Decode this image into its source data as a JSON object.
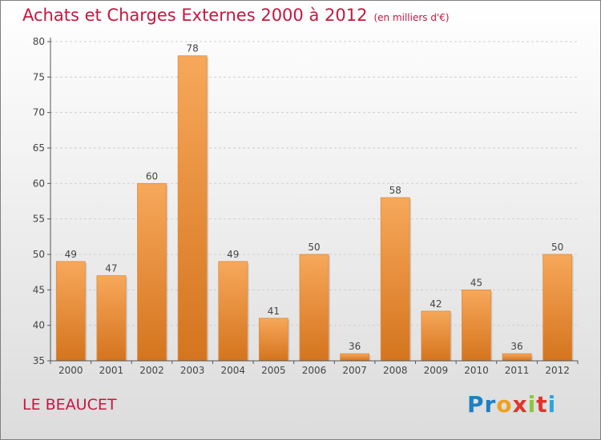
{
  "title": "Achats et Charges Externes 2000 à 2012",
  "unit": "(en milliers d'€)",
  "location": "LE BEAUCET",
  "logo": {
    "letters": [
      "P",
      "r",
      "o",
      "x",
      "i",
      "t",
      "i"
    ],
    "colors": [
      "#1e7fc4",
      "#1e7fc4",
      "#f0a020",
      "#e2342a",
      "#8cc63f",
      "#e2342a",
      "#2aa6d9"
    ]
  },
  "colors": {
    "bar_top": "#f7a85a",
    "bar_bottom": "#d4741e",
    "title": "#c8163f"
  },
  "chart_data": {
    "type": "bar",
    "categories": [
      "2000",
      "2001",
      "2002",
      "2003",
      "2004",
      "2005",
      "2006",
      "2007",
      "2008",
      "2009",
      "2010",
      "2011",
      "2012"
    ],
    "values": [
      49,
      47,
      60,
      78,
      49,
      41,
      50,
      36,
      58,
      42,
      45,
      36,
      50
    ],
    "ylim": [
      35,
      80
    ],
    "yticks": [
      35,
      40,
      45,
      50,
      55,
      60,
      65,
      70,
      75,
      80
    ],
    "grid": true,
    "legend": "none"
  }
}
